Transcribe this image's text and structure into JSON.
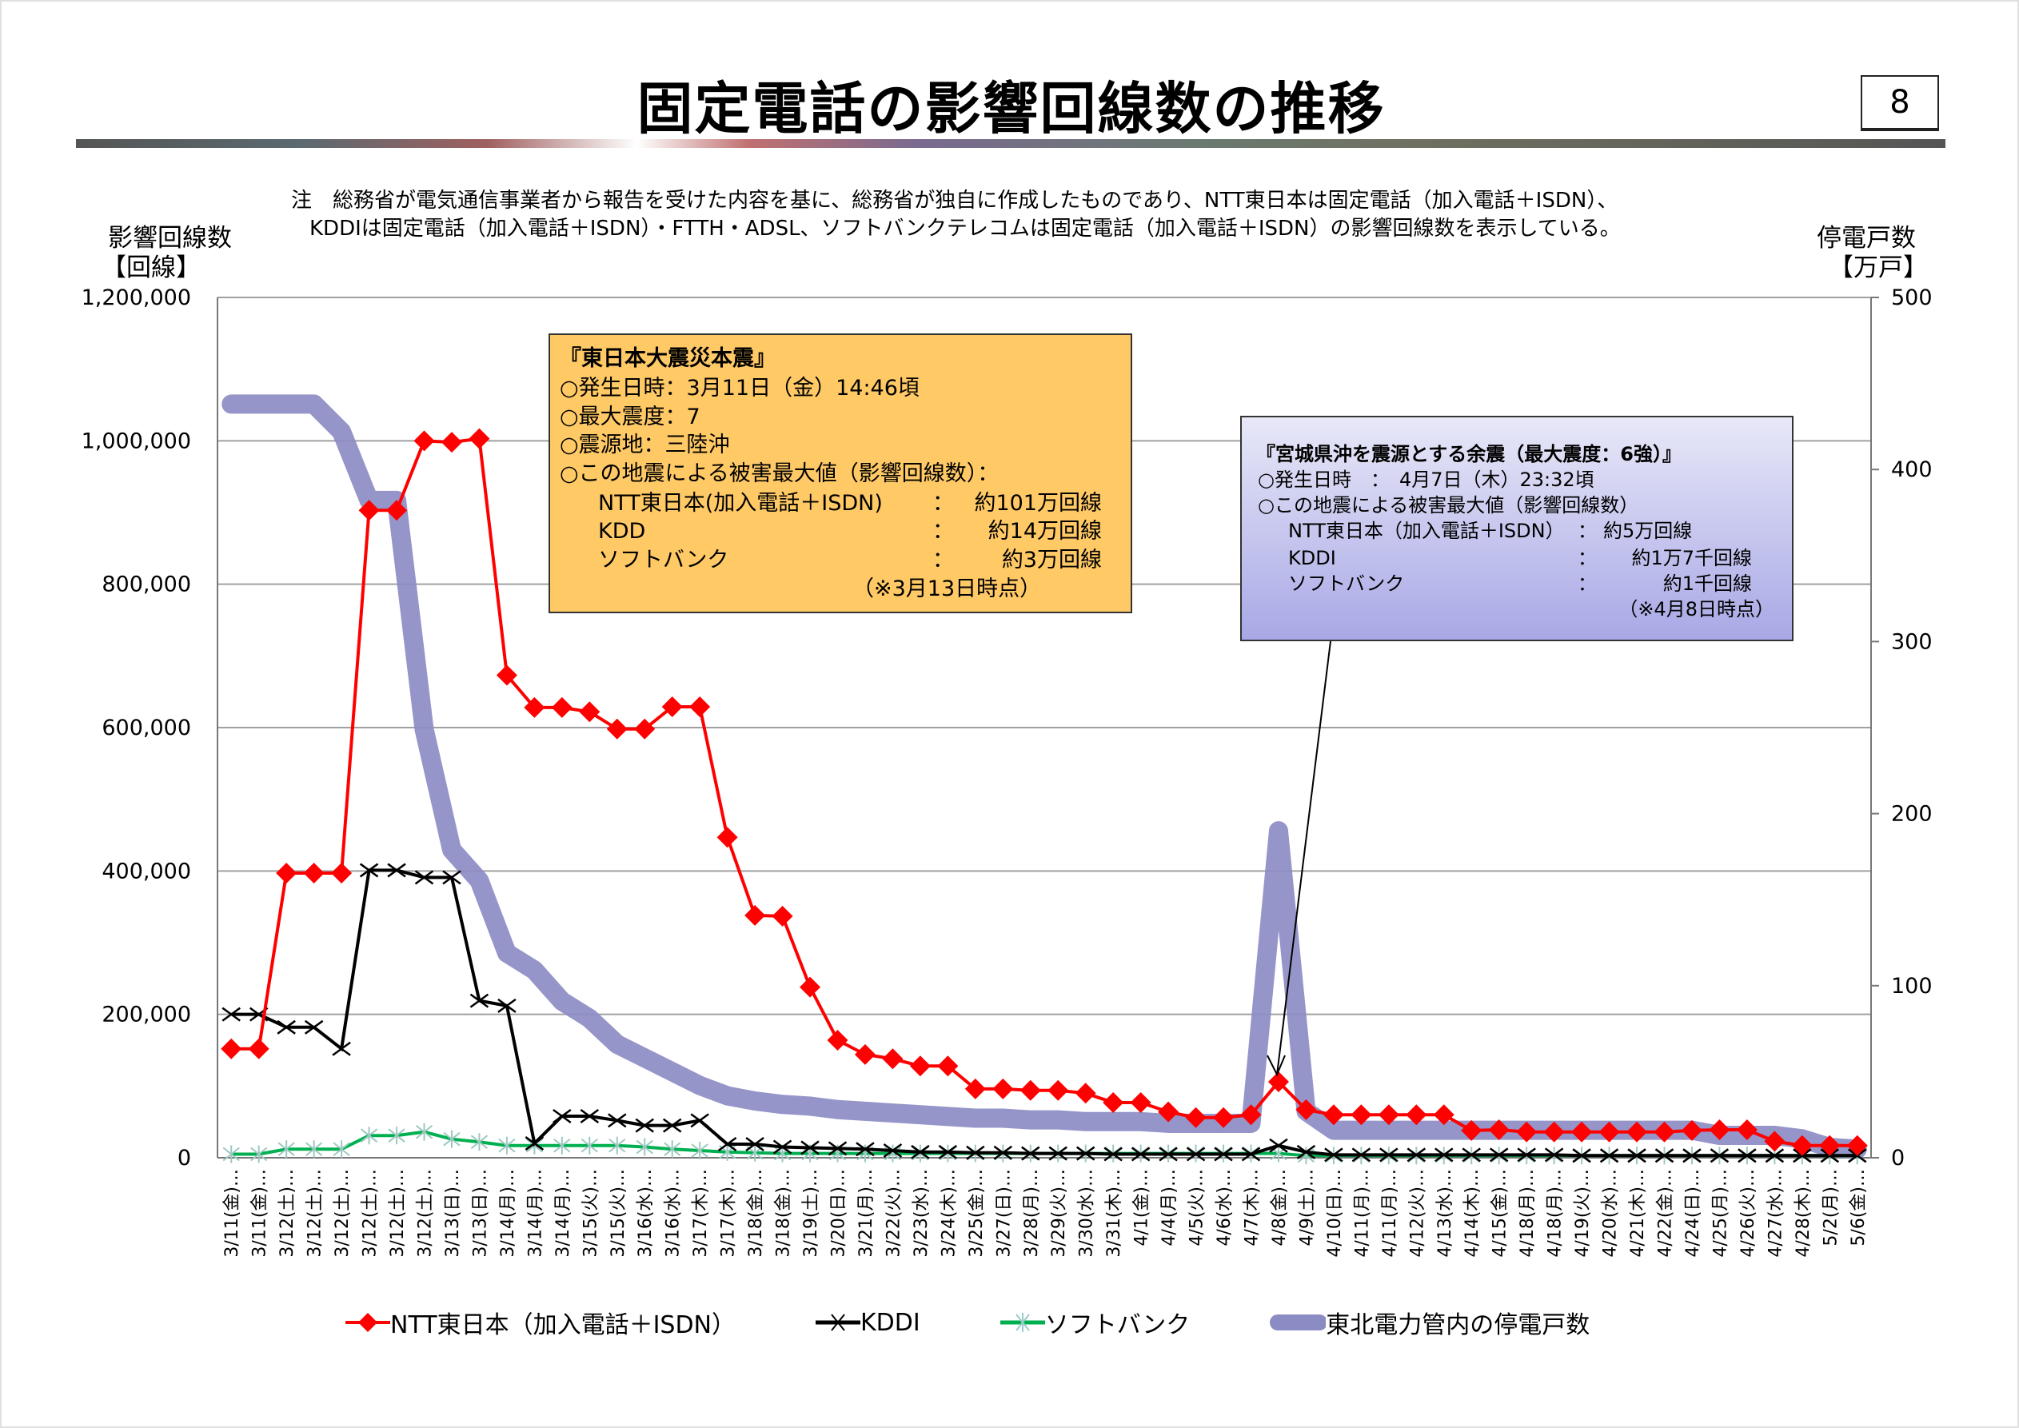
{
  "header": {
    "title": "固定電話の影響回線数の推移",
    "page_number": "8"
  },
  "note": {
    "line1": "注　総務省が電気通信事業者から報告を受けた内容を基に、総務省が独自に作成したものであり、NTT東日本は固定電話（加入電話＋ISDN）、",
    "line2": "KDDIは固定電話（加入電話＋ISDN）・FTTH・ADSL、ソフトバンクテレコムは固定電話（加入電話＋ISDN）の影響回線数を表示している。"
  },
  "annotation_main": {
    "title": "『東日本大震災本震』",
    "lines": [
      "○発生日時：3月11日（金）14:46頃",
      "○最大震度：7",
      "○震源地：三陸沖",
      "○この地震による被害最大値（影響回線数）："
    ],
    "rows": [
      {
        "label": "NTT東日本(加入電話＋ISDN)",
        "colon": "：",
        "value": "約101万回線"
      },
      {
        "label": "KDD",
        "colon": "：",
        "value": "約14万回線"
      },
      {
        "label": "ソフトバンク",
        "colon": "：",
        "value": "約3万回線"
      }
    ],
    "footnote": "（※3月13日時点）"
  },
  "annotation_aftershock": {
    "title": "『宮城県沖を震源とする余震（最大震度：6強）』",
    "lines": [
      "○発生日時　：　4月7日（木）23:32頃",
      "○この地震による被害最大値（影響回線数）"
    ],
    "rows": [
      {
        "label": "NTT東日本（加入電話＋ISDN）",
        "colon": "：",
        "value": "約5万回線"
      },
      {
        "label": "KDDI",
        "colon": "：",
        "value": "約1万7千回線"
      },
      {
        "label": "ソフトバンク",
        "colon": "：",
        "value": "約1千回線"
      }
    ],
    "footnote": "（※4月8日時点）"
  },
  "chart_data": {
    "type": "line",
    "title": "固定電話の影響回線数の推移",
    "ylabel": "影響回線数",
    "ylabel_unit": "【回線】",
    "y2label": "停電戸数",
    "y2label_unit": "【万戸】",
    "ylim": [
      0,
      1200000
    ],
    "y2lim": [
      0,
      500
    ],
    "yticks": [
      "0",
      "200,000",
      "400,000",
      "600,000",
      "800,000",
      "1,000,000",
      "1,200,000"
    ],
    "y2ticks": [
      "0",
      "100",
      "200",
      "300",
      "400",
      "500"
    ],
    "grid": true,
    "legend_position": "bottom",
    "categories": [
      "3/11(金)…",
      "3/11(金)…",
      "3/12(土)…",
      "3/12(土)…",
      "3/12(土)…",
      "3/12(土)…",
      "3/12(土)…",
      "3/12(土)…",
      "3/13(日)…",
      "3/13(日)…",
      "3/14(月)…",
      "3/14(月)…",
      "3/14(月)…",
      "3/15(火)…",
      "3/15(火)…",
      "3/16(水)…",
      "3/16(水)…",
      "3/17(木)…",
      "3/17(木)…",
      "3/18(金)…",
      "3/18(金)…",
      "3/19(土)…",
      "3/20(日)…",
      "3/21(月)…",
      "3/22(火)…",
      "3/23(水)…",
      "3/24(木)…",
      "3/25(金)…",
      "3/27(日)…",
      "3/28(月)…",
      "3/29(火)…",
      "3/30(水)…",
      "3/31(木)…",
      "4/1(金)…",
      "4/4(月)…",
      "4/5(火)…",
      "4/6(水)…",
      "4/7(木)…",
      "4/8(金)…",
      "4/9(土)…",
      "4/10(日)…",
      "4/11(月)…",
      "4/11(月)…",
      "4/12(火)…",
      "4/13(水)…",
      "4/14(木)…",
      "4/15(金)…",
      "4/18(月)…",
      "4/18(月)…",
      "4/19(火)…",
      "4/20(水)…",
      "4/21(木)…",
      "4/22(金)…",
      "4/24(日)…",
      "4/25(月)…",
      "4/26(火)…",
      "4/27(水)…",
      "4/28(木)…",
      "5/2(月)…",
      "5/6(金)…"
    ],
    "series": [
      {
        "name": "NTT東日本（加入電話＋ISDN）",
        "axis": "left",
        "color": "#ff0000",
        "marker": "diamond",
        "values": [
          152000,
          152000,
          397000,
          397000,
          397000,
          903000,
          903000,
          1000000,
          998000,
          1003000,
          673000,
          628000,
          628000,
          622000,
          598000,
          598000,
          629000,
          629000,
          447000,
          338000,
          337000,
          238000,
          164000,
          144000,
          138000,
          128000,
          128000,
          96000,
          96000,
          94000,
          94000,
          90000,
          77000,
          77000,
          64000,
          56000,
          56000,
          60000,
          106000,
          67000,
          60000,
          60000,
          60000,
          60000,
          60000,
          38000,
          39000,
          36000,
          36000,
          36000,
          36000,
          36000,
          36000,
          38000,
          39000,
          39000,
          23000,
          17000,
          17000,
          17000
        ]
      },
      {
        "name": "KDDI",
        "axis": "left",
        "color": "#000000",
        "marker": "x",
        "values": [
          200000,
          200000,
          182000,
          182000,
          152000,
          401000,
          401000,
          391000,
          391000,
          219000,
          212000,
          20000,
          58000,
          58000,
          52000,
          45000,
          45000,
          52000,
          19000,
          19000,
          15000,
          14000,
          13000,
          12000,
          10000,
          8000,
          8000,
          7000,
          7000,
          6000,
          6000,
          6000,
          5000,
          5000,
          5000,
          5000,
          5000,
          5000,
          17000,
          8000,
          4000,
          4000,
          4000,
          4000,
          4000,
          4000,
          4000,
          4000,
          4000,
          3000,
          3000,
          3000,
          3000,
          3000,
          3000,
          3000,
          3000,
          3000,
          3000,
          3000
        ]
      },
      {
        "name": "ソフトバンク",
        "axis": "left",
        "color": "#00b050",
        "marker": "asterisk",
        "values": [
          5000,
          5000,
          12000,
          12000,
          12000,
          31000,
          31000,
          36000,
          26000,
          22000,
          17000,
          17000,
          17000,
          17000,
          17000,
          15000,
          12000,
          10000,
          8000,
          7000,
          6000,
          6000,
          6000,
          6000,
          6000,
          6000,
          6000,
          6000,
          6000,
          6000,
          6000,
          6000,
          6000,
          6000,
          6000,
          6000,
          6000,
          6000,
          6000,
          3000,
          3000,
          3000,
          3000,
          3000,
          3000,
          3000,
          3000,
          3000,
          3000,
          3000,
          3000,
          3000,
          3000,
          3000,
          3000,
          3000,
          3000,
          3000,
          3000,
          3000
        ]
      },
      {
        "name": "東北電力管内の停電戸数",
        "axis": "right",
        "color": "#8c8cc4",
        "marker": "none",
        "values": [
          438,
          438,
          438,
          438,
          422,
          382,
          382,
          249,
          179,
          161,
          119,
          109,
          91,
          81,
          66,
          58,
          50,
          42,
          36,
          33,
          31,
          30,
          28,
          27,
          26,
          25,
          24,
          23,
          23,
          22,
          22,
          21,
          21,
          21,
          20,
          20,
          20,
          20,
          190,
          27,
          16,
          16,
          16,
          16,
          16,
          16,
          16,
          16,
          16,
          16,
          16,
          16,
          16,
          16,
          13,
          13,
          13,
          11,
          6,
          5
        ]
      }
    ]
  }
}
